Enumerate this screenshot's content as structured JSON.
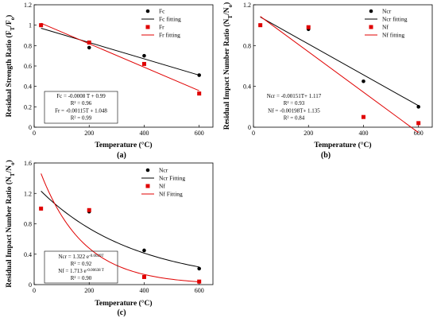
{
  "chart_data": [
    {
      "type": "scatter",
      "panel_label": "(a)",
      "xlabel": "Temperature (°C)",
      "ylabel": "Residual Strength Ratio (F",
      "ylabel_sub_1": "T",
      "ylabel_mid": "/F",
      "ylabel_sub_2": "o",
      "ylabel_end": ")",
      "xlim": [
        0,
        650
      ],
      "ylim": [
        0,
        1.2
      ],
      "xticks": [
        "0",
        "200",
        "400",
        "600"
      ],
      "yticks": [
        "0",
        "0.2",
        "0.4",
        "0.6",
        "0.8",
        "1",
        "1.2"
      ],
      "legend_position": "top-right",
      "series": [
        {
          "name": "Fc",
          "marker": "circle",
          "color": "#000000",
          "x": [
            25,
            200,
            400,
            600
          ],
          "y": [
            1.0,
            0.78,
            0.7,
            0.51
          ]
        },
        {
          "name": "Fr",
          "marker": "square",
          "color": "#e00000",
          "x": [
            25,
            200,
            400,
            600
          ],
          "y": [
            1.0,
            0.83,
            0.62,
            0.33
          ]
        }
      ],
      "fits": [
        {
          "name": "Fc fitting",
          "color": "#000000",
          "kind": "linear",
          "slope": -0.0008,
          "intercept": 0.99,
          "x_range": [
            25,
            600
          ]
        },
        {
          "name": "Fr fitting",
          "color": "#e00000",
          "kind": "linear",
          "slope": -0.00115,
          "intercept": 1.048,
          "x_range": [
            25,
            600
          ]
        }
      ],
      "annotation": [
        "Fc = -0.0008 T + 0.99",
        "R² = 0.96",
        "Fr = -0.00115T + 1.048",
        "R² = 0.99"
      ]
    },
    {
      "type": "scatter",
      "panel_label": "(b)",
      "xlabel": "Temperature (°C)",
      "ylabel": "Residual Impact Number Ratio (N",
      "ylabel_sub_1": "T",
      "ylabel_mid": "/N",
      "ylabel_sub_2": "o",
      "ylabel_end": ")",
      "xlim": [
        0,
        650
      ],
      "ylim": [
        0,
        1.2
      ],
      "xticks": [
        "0",
        "200",
        "400",
        "600"
      ],
      "yticks": [
        "0",
        "0.4",
        "0.8",
        "1.2"
      ],
      "legend_position": "top-right",
      "series": [
        {
          "name": "Ncr",
          "marker": "circle",
          "color": "#000000",
          "x": [
            25,
            200,
            400,
            600
          ],
          "y": [
            1.0,
            0.96,
            0.45,
            0.2
          ]
        },
        {
          "name": "Nf",
          "marker": "square",
          "color": "#e00000",
          "x": [
            25,
            200,
            400,
            600
          ],
          "y": [
            1.0,
            0.98,
            0.1,
            0.04
          ]
        }
      ],
      "fits": [
        {
          "name": "Ncr fitting",
          "color": "#000000",
          "kind": "linear",
          "slope": -0.00151,
          "intercept": 1.117,
          "x_range": [
            25,
            600
          ]
        },
        {
          "name": "Nf fitting",
          "color": "#e00000",
          "kind": "linear",
          "slope": -0.00198,
          "intercept": 1.135,
          "x_range": [
            25,
            600
          ]
        }
      ],
      "annotation": [
        "Ncr = -0.00151T+ 1.117",
        "R² = 0.93",
        "Nf = -0.00198T+ 1.135",
        "R² = 0.84"
      ]
    },
    {
      "type": "scatter",
      "panel_label": "(c)",
      "xlabel": "Temperature (°C)",
      "ylabel": "Residual Impact Number Ratio (N",
      "ylabel_sub_1": "T",
      "ylabel_mid": "/N",
      "ylabel_sub_2": "o",
      "ylabel_end": ")",
      "xlim": [
        0,
        650
      ],
      "ylim": [
        0,
        1.6
      ],
      "xticks": [
        "0",
        "200",
        "400",
        "600"
      ],
      "yticks": [
        "0",
        "0.4",
        "0.8",
        "1.2",
        "1.6"
      ],
      "legend_position": "top-right",
      "series": [
        {
          "name": "Ncr",
          "marker": "circle",
          "color": "#000000",
          "x": [
            25,
            200,
            400,
            600
          ],
          "y": [
            1.0,
            0.96,
            0.45,
            0.21
          ]
        },
        {
          "name": "Nf",
          "marker": "square",
          "color": "#e00000",
          "x": [
            25,
            200,
            400,
            600
          ],
          "y": [
            1.0,
            0.98,
            0.1,
            0.04
          ]
        }
      ],
      "fits": [
        {
          "name": "Ncr Fitting",
          "color": "#000000",
          "kind": "exp",
          "a": 1.322,
          "b": -0.0029,
          "x_range": [
            25,
            600
          ]
        },
        {
          "name": "Nf Fitting",
          "color": "#e00000",
          "kind": "exp",
          "a": 1.713,
          "b": -0.00638,
          "x_range": [
            25,
            600
          ]
        }
      ],
      "annotation": [
        {
          "pre": "Ncr = 1.322 e",
          "sup": "-0.0029T"
        },
        {
          "pre": "R² = 0.92",
          "sup": ""
        },
        {
          "pre": "Nf = 1.713 e",
          "sup": "-0.00638 T"
        },
        {
          "pre": "R² = 0.90",
          "sup": ""
        }
      ]
    }
  ]
}
